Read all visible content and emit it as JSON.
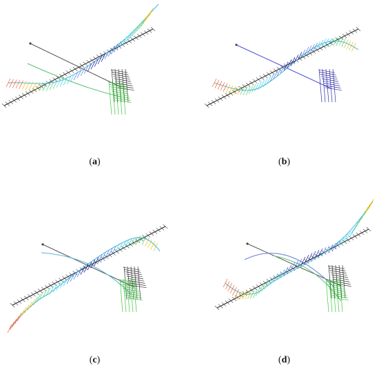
{
  "figure": {
    "panels": [
      {
        "id": "a",
        "label": "a",
        "caption": "(a)"
      },
      {
        "id": "b",
        "label": "b",
        "caption": "(b)"
      },
      {
        "id": "c",
        "label": "c",
        "caption": "(c)"
      },
      {
        "id": "d",
        "label": "d",
        "caption": "(d)"
      }
    ]
  },
  "colors": {
    "axis": "#222222",
    "grid": "#555555",
    "reference_line_a": "#555555",
    "reference_line_b": "#4b4bd6",
    "scale_low": "#1a1aa0",
    "scale_mid": "#41d0e8",
    "scale_mid2": "#5bd07a",
    "scale_high": "#ff5a2a",
    "green_blade": "#3ec43e"
  }
}
